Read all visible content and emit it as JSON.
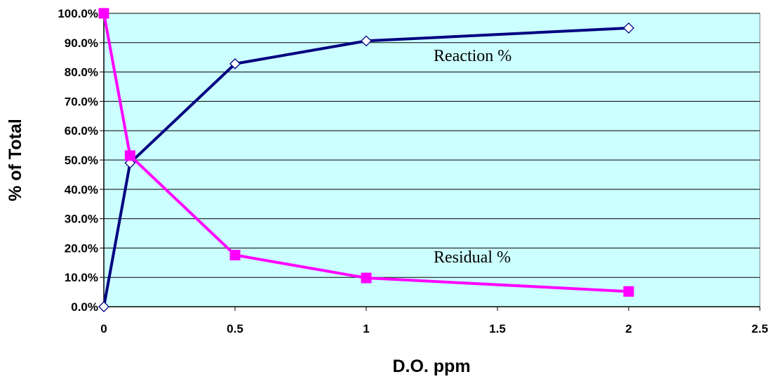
{
  "chart_data": {
    "type": "line",
    "title": "",
    "xlabel": "D.O. ppm",
    "ylabel": "% of Total",
    "xlim": [
      0,
      2.5
    ],
    "ylim": [
      0,
      100
    ],
    "x_ticks": [
      "0",
      "0.5",
      "1",
      "1.5",
      "2",
      "2.5"
    ],
    "y_ticks": [
      "0.0%",
      "10.0%",
      "20.0%",
      "30.0%",
      "40.0%",
      "50.0%",
      "60.0%",
      "70.0%",
      "80.0%",
      "90.0%",
      "100.0%"
    ],
    "grid": true,
    "plot_background": "#ccffff",
    "series": [
      {
        "name": "Reaction %",
        "color": "#000080",
        "marker": "open-diamond",
        "x": [
          0,
          0.1,
          0.5,
          1,
          2
        ],
        "y": [
          0.0,
          49.0,
          82.8,
          90.6,
          95.0
        ]
      },
      {
        "name": "Residual %",
        "color": "#ff00ff",
        "marker": "filled-square",
        "x": [
          0,
          0.1,
          0.5,
          1,
          2
        ],
        "y": [
          100.0,
          51.5,
          17.6,
          9.8,
          5.2
        ]
      }
    ],
    "annotations": [
      "Reaction %",
      "Residual %"
    ]
  }
}
